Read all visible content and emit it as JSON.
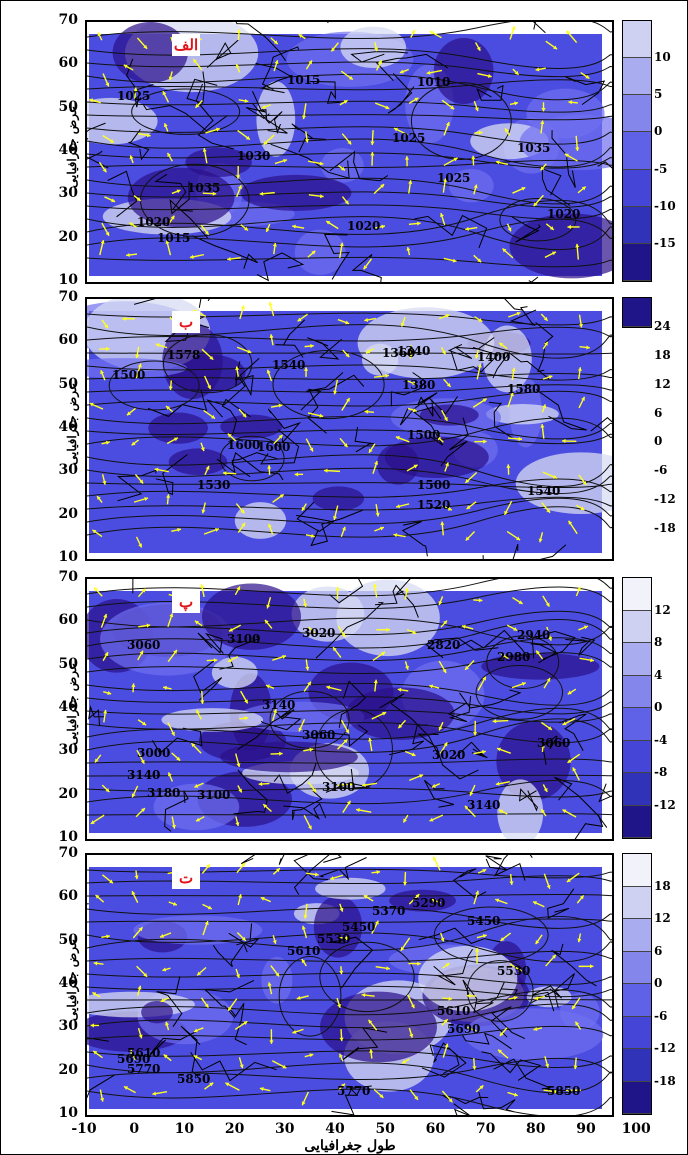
{
  "x_axis": {
    "label": "طول جغرافیایی",
    "ticks": [
      "-10",
      "0",
      "10",
      "20",
      "30",
      "40",
      "50",
      "60",
      "70",
      "80",
      "90",
      "100"
    ]
  },
  "panels": [
    {
      "label": "الف",
      "ylabel": "عرض جغرافیایی",
      "yticks": [
        "70",
        "60",
        "50",
        "40",
        "30",
        "20",
        "10"
      ],
      "colorbar": [
        "10",
        "5",
        "0",
        "-5",
        "-10",
        "-15"
      ],
      "contours": [
        {
          "text": "1025"
        },
        {
          "text": "1020"
        },
        {
          "text": "1015"
        },
        {
          "text": "1030"
        },
        {
          "text": "1035"
        },
        {
          "text": "1020"
        },
        {
          "text": "1015"
        },
        {
          "text": "1010"
        },
        {
          "text": "1025"
        },
        {
          "text": "1025"
        },
        {
          "text": "1035"
        },
        {
          "text": "1020"
        }
      ]
    },
    {
      "label": "ب",
      "ylabel": "عرض جغرافیایی",
      "yticks": [
        "70",
        "60",
        "50",
        "40",
        "30",
        "20",
        "10"
      ],
      "colorbar": [
        "24",
        "18",
        "12",
        "6",
        "0",
        "-6",
        "-12",
        "-18"
      ],
      "contours": [
        {
          "text": "1500"
        },
        {
          "text": "1578"
        },
        {
          "text": "1540"
        },
        {
          "text": "1600"
        },
        {
          "text": "1360"
        },
        {
          "text": "1340"
        },
        {
          "text": "1380"
        },
        {
          "text": "1400"
        },
        {
          "text": "1580"
        },
        {
          "text": "1500"
        },
        {
          "text": "1500"
        },
        {
          "text": "1540"
        },
        {
          "text": "1520"
        },
        {
          "text": "1530"
        },
        {
          "text": "1600"
        }
      ]
    },
    {
      "label": "پ",
      "ylabel": "عرض جغرافیایی",
      "yticks": [
        "70",
        "60",
        "50",
        "40",
        "30",
        "20",
        "10"
      ],
      "colorbar": [
        "12",
        "8",
        "4",
        "0",
        "-4",
        "-8",
        "-12"
      ],
      "contours": [
        {
          "text": "3060"
        },
        {
          "text": "3100"
        },
        {
          "text": "3020"
        },
        {
          "text": "2820"
        },
        {
          "text": "2940"
        },
        {
          "text": "2980"
        },
        {
          "text": "3140"
        },
        {
          "text": "3060"
        },
        {
          "text": "3020"
        },
        {
          "text": "3060"
        },
        {
          "text": "3000"
        },
        {
          "text": "3100"
        },
        {
          "text": "3140"
        },
        {
          "text": "3180"
        },
        {
          "text": "3100"
        },
        {
          "text": "3140"
        }
      ]
    },
    {
      "label": "ت",
      "ylabel": "عرض جغرافیایی",
      "yticks": [
        "70",
        "60",
        "50",
        "40",
        "30",
        "20",
        "10"
      ],
      "colorbar": [
        "18",
        "12",
        "6",
        "0",
        "-6",
        "-12",
        "-18"
      ],
      "contours": [
        {
          "text": "5370"
        },
        {
          "text": "5290"
        },
        {
          "text": "5450"
        },
        {
          "text": "5530"
        },
        {
          "text": "5610"
        },
        {
          "text": "5690"
        },
        {
          "text": "5610"
        },
        {
          "text": "5690"
        },
        {
          "text": "5770"
        },
        {
          "text": "5850"
        },
        {
          "text": "5770"
        },
        {
          "text": "5850"
        },
        {
          "text": "5610"
        },
        {
          "text": "5530"
        },
        {
          "text": "5450"
        }
      ]
    }
  ],
  "colors": {
    "deep": "#2b0f8a",
    "mid": "#4b4de0",
    "light": "#6f6ff0",
    "pale": "#d8dcf2",
    "arrow": "#ffff22"
  }
}
